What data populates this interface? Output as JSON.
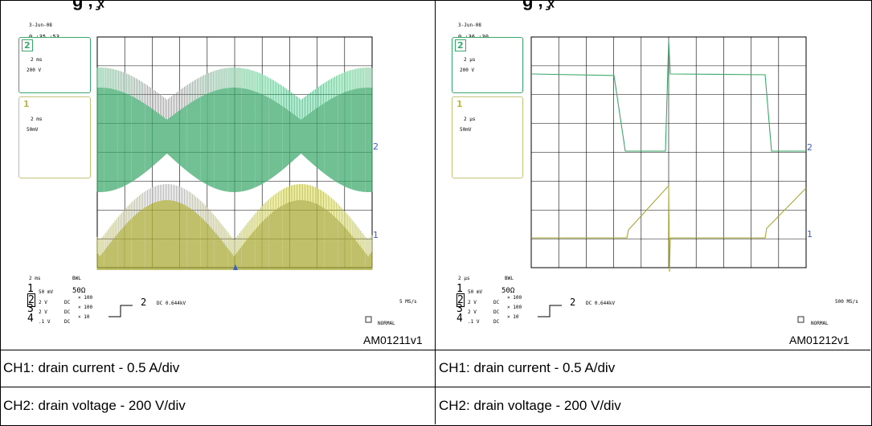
{
  "header": {
    "left_cut_text": "g  ‚ ̧ₓ",
    "right_cut_text": "g  ‚ ̧ₓ"
  },
  "panels": [
    {
      "date": "3-Jun-08",
      "time": "0 :35 :53",
      "ch2_box": {
        "num": "2",
        "timebase": "2 ms",
        "volts": "200 V"
      },
      "ch1_box": {
        "num": "1",
        "timebase": "2 ms",
        "volts": "50mV"
      },
      "bottom": {
        "timebase": "2 ms",
        "bwl": "BWL",
        "rows": [
          {
            "ch": "1",
            "v": "50 mV",
            "c": "50Ω",
            "x": ""
          },
          {
            "ch": "2",
            "v": "2    V",
            "c": "DC",
            "x": "× 100"
          },
          {
            "ch": "3",
            "v": "2    V",
            "c": "DC",
            "x": "× 100"
          },
          {
            "ch": "4",
            "v": ".1   V",
            "c": "DC",
            "x": "× 10"
          }
        ],
        "trig_ch": "2",
        "trig_level": "DC 0.644kV",
        "sample_rate": "5 MS/s",
        "mode": "NORMAL"
      },
      "ref": "AM01211v1",
      "trace_color_ch2": "#3aa86a",
      "trace_color_ch1": "#a9a832"
    },
    {
      "date": "3-Jun-08",
      "time": "0 :36 :30",
      "ch2_box": {
        "num": "2",
        "timebase": "2  μs",
        "volts": "200 V"
      },
      "ch1_box": {
        "num": "1",
        "timebase": "2  μs",
        "volts": "50mV"
      },
      "bottom": {
        "timebase": "2  μs",
        "bwl": "BWL",
        "rows": [
          {
            "ch": "1",
            "v": "50 mV",
            "c": "50Ω",
            "x": ""
          },
          {
            "ch": "2",
            "v": "2    V",
            "c": "DC",
            "x": "× 100"
          },
          {
            "ch": "3",
            "v": "2    V",
            "c": "DC",
            "x": "× 100"
          },
          {
            "ch": "4",
            "v": ".1   V",
            "c": "DC",
            "x": "× 10"
          }
        ],
        "trig_ch": "2",
        "trig_level": "DC 0.644kV",
        "sample_rate": "500 MS/s",
        "mode": "NORMAL"
      },
      "ref": "AM01212v1",
      "trace_color_ch2": "#3aa86a",
      "trace_color_ch1": "#a9a832"
    }
  ],
  "captions": {
    "row1_left": "CH1: drain current - 0.5 A/div",
    "row1_right": "CH1: drain current - 0.5 A/div",
    "row2_left": "CH2: drain voltage - 200 V/div",
    "row2_right": "CH2: drain voltage - 200 V/div"
  }
}
